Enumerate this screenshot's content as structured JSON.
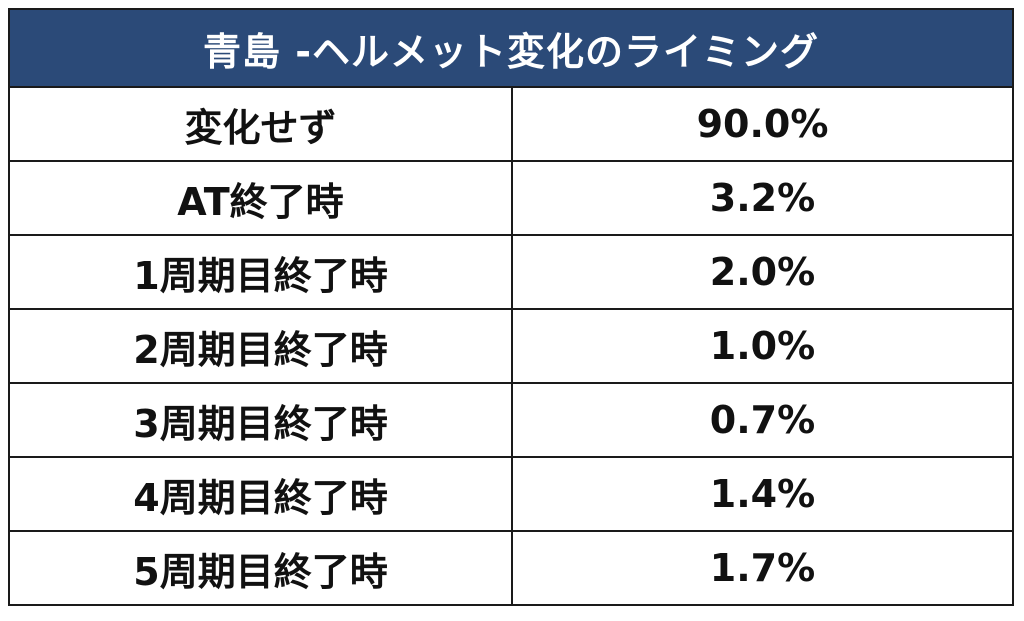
{
  "title": "青島 -ヘルメット変化のライミング",
  "colors": {
    "header_bg": "#2b4a78",
    "header_text": "#ffffff",
    "border": "#1a1a1a"
  },
  "rows": [
    {
      "label": "変化せず",
      "value": "90.0%"
    },
    {
      "label": "AT終了時",
      "value": "3.2%"
    },
    {
      "label": "1周期目終了時",
      "value": "2.0%"
    },
    {
      "label": "2周期目終了時",
      "value": "1.0%"
    },
    {
      "label": "3周期目終了時",
      "value": "0.7%"
    },
    {
      "label": "4周期目終了時",
      "value": "1.4%"
    },
    {
      "label": "5周期目終了時",
      "value": "1.7%"
    }
  ]
}
